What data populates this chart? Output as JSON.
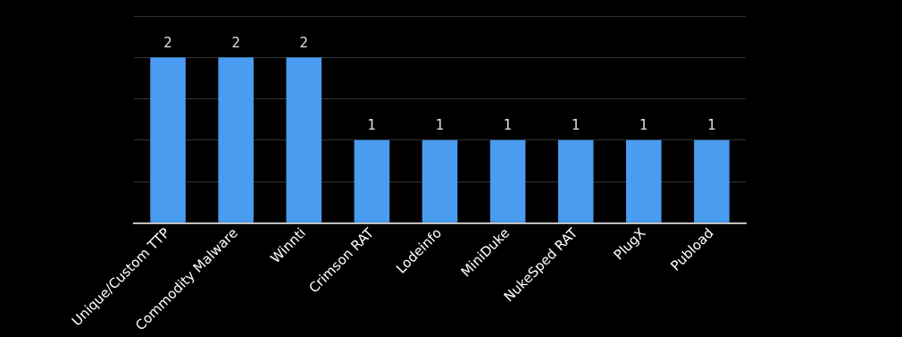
{
  "chart_data": {
    "type": "bar",
    "categories": [
      "Unique/Custom TTP",
      "Commodity Malware",
      "Winnti",
      "Crimson RAT",
      "Lodeinfo",
      "MiniDuke",
      "NukeSped RAT",
      "PlugX",
      "Pubload"
    ],
    "values": [
      2,
      2,
      2,
      1,
      1,
      1,
      1,
      1,
      1
    ],
    "color": "#4a9cf0",
    "ylim": [
      0,
      2.5
    ],
    "yticks": [
      {
        "value": 0,
        "label": null
      },
      {
        "value": 0.5,
        "label": null
      },
      {
        "value": 1,
        "label": null
      },
      {
        "value": 1.5,
        "label": null
      },
      {
        "value": 2,
        "label": null
      },
      {
        "value": 2.5,
        "label": null
      }
    ],
    "tick_labels": "x",
    "grid": "y",
    "data_labels": true
  }
}
